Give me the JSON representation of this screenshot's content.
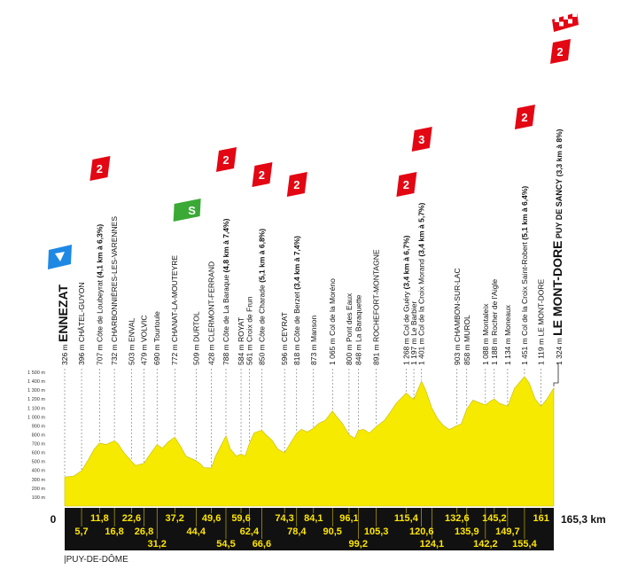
{
  "chart_data": {
    "type": "area",
    "title": "",
    "xlabel": "",
    "ylabel": "",
    "xlim": [
      0,
      165.3
    ],
    "ylim": [
      0,
      1500
    ],
    "x_start_label": "0",
    "x_end_label": "165,3 km",
    "y_ticks": [
      "100 m",
      "200 m",
      "300 m",
      "400 m",
      "500 m",
      "600 m",
      "700 m",
      "800 m",
      "900 m",
      "1 000 m",
      "1 100 m",
      "1 200 m",
      "1 300 m",
      "1 400 m",
      "1 500 m"
    ],
    "profile": {
      "x": [
        0,
        3,
        5.7,
        8,
        10,
        11.8,
        14,
        16.8,
        18,
        20,
        22.6,
        24,
        26.8,
        28,
        31.2,
        33,
        35,
        37.2,
        39,
        41,
        44.4,
        46,
        47,
        49.6,
        51,
        54.5,
        56,
        58,
        59.6,
        61,
        62.4,
        64,
        66.6,
        68,
        70,
        72,
        74.3,
        76,
        78.4,
        80,
        82,
        84.1,
        86,
        88,
        90.5,
        92,
        94,
        96.1,
        98,
        99.2,
        101,
        103,
        105.3,
        108,
        110,
        112,
        115.4,
        117,
        118,
        120.6,
        122,
        124.1,
        126,
        128,
        130,
        132.6,
        134,
        135.9,
        138,
        140,
        142.2,
        144,
        145.2,
        147,
        149.7,
        152,
        155.4,
        157,
        159,
        161,
        163,
        165.3
      ],
      "y": [
        326,
        335,
        396,
        520,
        640,
        707,
        690,
        732,
        700,
        600,
        503,
        455,
        479,
        540,
        690,
        650,
        720,
        772,
        680,
        560,
        509,
        470,
        430,
        428,
        560,
        788,
        640,
        560,
        584,
        561,
        700,
        820,
        850,
        800,
        740,
        640,
        596,
        690,
        818,
        860,
        830,
        873,
        930,
        960,
        1065,
        1000,
        920,
        800,
        760,
        848,
        860,
        820,
        891,
        960,
        1050,
        1150,
        1268,
        1220,
        1197,
        1401,
        1300,
        1100,
        980,
        903,
        858,
        903,
        920,
        1088,
        1188,
        1160,
        1134,
        1180,
        1200,
        1150,
        1120,
        1320,
        1451,
        1380,
        1200,
        1119,
        1200,
        1324
      ]
    },
    "places": [
      {
        "label": "326 m",
        "name": "ENNEZAT",
        "major": true,
        "km": 0
      },
      {
        "label": "396 m",
        "name": "CHÂTEL-GUYON",
        "km": 5.7
      },
      {
        "label": "707 m",
        "name": "Côte de Loubeyrat",
        "detail": "(4,1 km à 6,3%)",
        "km": 11.8
      },
      {
        "label": "732 m",
        "name": "CHARBONNIÈRES-LES-VARENNES",
        "km": 16.8
      },
      {
        "label": "503 m",
        "name": "ENVAL",
        "km": 22.6
      },
      {
        "label": "479 m",
        "name": "VOLVIC",
        "km": 26.8
      },
      {
        "label": "690 m",
        "name": "Tourtoule",
        "km": 31.2
      },
      {
        "label": "772 m",
        "name": "CHANAT-LA-MOUTEYRE",
        "km": 37.2
      },
      {
        "label": "509 m",
        "name": "DURTOL",
        "km": 44.4
      },
      {
        "label": "428 m",
        "name": "CLERMONT-FERRAND",
        "km": 49.6
      },
      {
        "label": "788 m",
        "name": "Côte de La Baraque",
        "detail": "(4,8 km à 7,4%)",
        "km": 54.5
      },
      {
        "label": "584 m",
        "name": "ROYAT",
        "km": 59.6
      },
      {
        "label": "561 m",
        "name": "Croix de Frun",
        "km": 62.4
      },
      {
        "label": "850 m",
        "name": "Côte de Charade",
        "detail": "(5,1 km à 6,8%)",
        "km": 66.6
      },
      {
        "label": "596 m",
        "name": "CEYRAT",
        "km": 74.3
      },
      {
        "label": "818 m",
        "name": "Côte de Berzet",
        "detail": "(3,4 km à 7,4%)",
        "km": 78.4
      },
      {
        "label": "873 m",
        "name": "Manson",
        "km": 84.1
      },
      {
        "label": "1 065 m",
        "name": "Col de la Moréno",
        "km": 90.5
      },
      {
        "label": "800 m",
        "name": "Pont des Eaux",
        "km": 96.1
      },
      {
        "label": "848 m",
        "name": "La Baraquette",
        "km": 99.2
      },
      {
        "label": "891 m",
        "name": "ROCHEFORT-MONTAGNE",
        "km": 105.3
      },
      {
        "label": "1 268 m",
        "name": "Col de Guéry",
        "detail": "(3,4 km à 6,7%)",
        "km": 115.4
      },
      {
        "label": "1 197 m",
        "name": "Le Barbier",
        "km": 118
      },
      {
        "label": "1 401 m",
        "name": "Col de la Croix Morand",
        "detail": "(3,4 km à 5,7%)",
        "km": 120.6
      },
      {
        "label": "903 m",
        "name": "CHAMBON-SUR-LAC",
        "km": 132.6
      },
      {
        "label": "858 m",
        "name": "MUROL",
        "km": 135.9
      },
      {
        "label": "1 088 m",
        "name": "Montaleix",
        "km": 142.2
      },
      {
        "label": "1 188 m",
        "name": "Rocher de l'Aigle",
        "km": 145.2
      },
      {
        "label": "1 134 m",
        "name": "Moneaux",
        "km": 149.7
      },
      {
        "label": "1 451 m",
        "name": "Col de la Croix Saint-Robert",
        "detail": "(5,1 km à 6,4%)",
        "km": 155.4
      },
      {
        "label": "1 119 m",
        "name": "LE MONT-DORE",
        "km": 161
      },
      {
        "label": "1 324 m",
        "name": "LE MONT-DORE",
        "subtitle": "PUY DE SANCY",
        "detail": "(3,3 km à 8%)",
        "major": true,
        "km": 165.3
      }
    ],
    "km_markers": [
      {
        "km": 5.7,
        "label": "5,7",
        "row": 2
      },
      {
        "km": 11.8,
        "label": "11,8",
        "row": 1
      },
      {
        "km": 16.8,
        "label": "16,8",
        "row": 2
      },
      {
        "km": 22.6,
        "label": "22,6",
        "row": 1
      },
      {
        "km": 26.8,
        "label": "26,8",
        "row": 2
      },
      {
        "km": 31.2,
        "label": "31,2",
        "row": 3
      },
      {
        "km": 37.2,
        "label": "37,2",
        "row": 1
      },
      {
        "km": 44.4,
        "label": "44,4",
        "row": 2
      },
      {
        "km": 49.6,
        "label": "49,6",
        "row": 1
      },
      {
        "km": 54.5,
        "label": "54,5",
        "row": 3
      },
      {
        "km": 59.6,
        "label": "59,6",
        "row": 1
      },
      {
        "km": 62.4,
        "label": "62,4",
        "row": 2
      },
      {
        "km": 66.6,
        "label": "66,6",
        "row": 3
      },
      {
        "km": 74.3,
        "label": "74,3",
        "row": 1
      },
      {
        "km": 78.4,
        "label": "78,4",
        "row": 2
      },
      {
        "km": 84.1,
        "label": "84,1",
        "row": 1
      },
      {
        "km": 90.5,
        "label": "90,5",
        "row": 2
      },
      {
        "km": 96.1,
        "label": "96,1",
        "row": 1
      },
      {
        "km": 99.2,
        "label": "99,2",
        "row": 3
      },
      {
        "km": 105.3,
        "label": "105,3",
        "row": 2
      },
      {
        "km": 115.4,
        "label": "115,4",
        "row": 1
      },
      {
        "km": 120.6,
        "label": "120,6",
        "row": 2
      },
      {
        "km": 124.1,
        "label": "124,1",
        "row": 3
      },
      {
        "km": 132.6,
        "label": "132,6",
        "row": 1
      },
      {
        "km": 135.9,
        "label": "135,9",
        "row": 2
      },
      {
        "km": 142.2,
        "label": "142,2",
        "row": 3
      },
      {
        "km": 145.2,
        "label": "145,2",
        "row": 1
      },
      {
        "km": 149.7,
        "label": "149,7",
        "row": 2
      },
      {
        "km": 155.4,
        "label": "155,4",
        "row": 3
      },
      {
        "km": 161,
        "label": "161",
        "row": 1
      }
    ],
    "climbs": [
      {
        "km": 11.8,
        "category": "2"
      },
      {
        "km": 54.5,
        "category": "2"
      },
      {
        "km": 66.6,
        "category": "2"
      },
      {
        "km": 78.4,
        "category": "2"
      },
      {
        "km": 115.4,
        "category": "2"
      },
      {
        "km": 120.6,
        "category": "3"
      },
      {
        "km": 155.4,
        "category": "2"
      },
      {
        "km": 165.3,
        "category": "2"
      }
    ],
    "sprint": {
      "km": 49.6,
      "label": "S"
    },
    "start_marker_km": 0,
    "finish_flag_km": 165.3,
    "region_label": "PUY-DE-DÔME",
    "colors": {
      "profile_fill": "#f5ea00",
      "climb_badge": "#e30613",
      "sprint_badge": "#3aa935",
      "start_badge": "#1e88e5",
      "km_band": "#111111",
      "km_text": "#ffe600"
    }
  }
}
